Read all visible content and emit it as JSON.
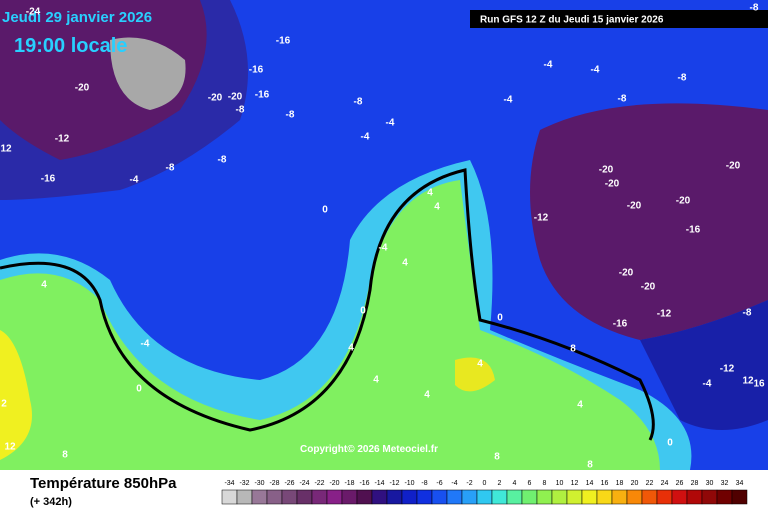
{
  "header": {
    "date": "Jeudi 29 janvier 2026",
    "time": "19:00 locale",
    "run": "Run GFS 12 Z du Jeudi 15 janvier 2026"
  },
  "copyright": "Copyright© 2026 Meteociel.fr",
  "footer": {
    "title": "Température 850hPa",
    "lead": "(+ 342h)"
  },
  "legend": {
    "ticks": [
      -34,
      -32,
      -30,
      -28,
      -26,
      -24,
      -22,
      -20,
      -18,
      -16,
      -14,
      -12,
      -10,
      -8,
      -6,
      -4,
      -2,
      0,
      2,
      4,
      6,
      8,
      10,
      12,
      14,
      16,
      18,
      20,
      22,
      24,
      26,
      28,
      30,
      32,
      34
    ],
    "colors": [
      "#d8d8d8",
      "#b8b8b8",
      "#987898",
      "#886088",
      "#784878",
      "#683068",
      "#782878",
      "#882088",
      "#6a1a6a",
      "#501050",
      "#301080",
      "#1818a0",
      "#1020c8",
      "#1030e0",
      "#1850f0",
      "#2078f8",
      "#28a0f8",
      "#30c8f0",
      "#40e8d8",
      "#58f0a0",
      "#70f070",
      "#90f050",
      "#b0f040",
      "#d0f030",
      "#f0f020",
      "#f8d818",
      "#f8b010",
      "#f88808",
      "#f05808",
      "#e83008",
      "#d01010",
      "#b00808",
      "#900808",
      "#700000",
      "#500000"
    ]
  },
  "map": {
    "labels": [
      "-24",
      "-20",
      "-20",
      "-20",
      "-16",
      "-16",
      "-16",
      "-8",
      "-8",
      "-8",
      "-4",
      "-4",
      "-12",
      "-16",
      "12",
      "-8",
      "-8",
      "-4",
      "0",
      "-4",
      "4",
      "4",
      "0",
      "4",
      "-4",
      "0",
      "4",
      "2",
      "12",
      "8",
      "4",
      "4",
      "4",
      "8",
      "8",
      "4",
      "0",
      "8",
      "-12",
      "-16",
      "-20",
      "-20",
      "-20",
      "-20",
      "-20",
      "-20",
      "-20",
      "-16",
      "-12",
      "-8",
      "-12",
      "-4",
      "12",
      "16",
      "-8",
      "-8",
      "-4",
      "-4",
      "-4",
      "-8",
      "0",
      "4"
    ]
  }
}
